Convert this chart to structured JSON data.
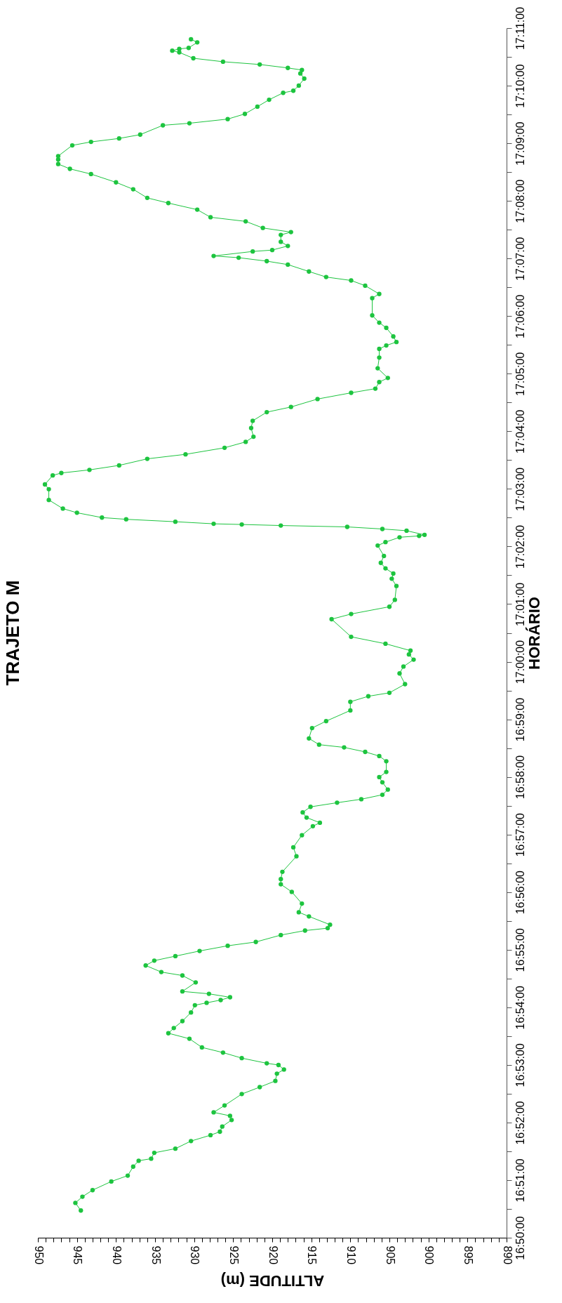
{
  "chart_data": {
    "type": "line",
    "title": "TRAJETO M",
    "xlabel": "ALTITUDE (m)",
    "ylabel": "HORÁRIO",
    "marker": "circle",
    "line_style": "solid",
    "x": [
      944.5,
      945.2,
      944.3,
      943.0,
      940.6,
      938.5,
      937.8,
      937.1,
      935.5,
      935.1,
      932.4,
      930.4,
      927.9,
      926.7,
      926.4,
      925.2,
      925.4,
      927.5,
      926.1,
      923.9,
      921.6,
      919.6,
      919.4,
      918.5,
      919.2,
      920.7,
      923.9,
      926.3,
      929.0,
      930.6,
      933.3,
      932.6,
      931.5,
      930.4,
      929.9,
      928.4,
      926.6,
      925.4,
      928.1,
      931.5,
      929.8,
      931.5,
      934.2,
      936.2,
      935.1,
      932.4,
      929.3,
      925.7,
      922.1,
      918.9,
      915.8,
      912.9,
      912.6,
      915.3,
      916.6,
      916.2,
      917.5,
      918.9,
      918.9,
      918.7,
      916.9,
      917.3,
      916.2,
      914.8,
      913.9,
      915.6,
      916.1,
      915.1,
      911.7,
      908.6,
      905.9,
      905.2,
      905.9,
      906.3,
      905.4,
      905.4,
      906.3,
      908.1,
      910.8,
      914.0,
      915.3,
      914.9,
      913.1,
      910.0,
      910.0,
      907.7,
      905.0,
      903.0,
      903.7,
      903.2,
      901.9,
      902.5,
      902.3,
      905.5,
      909.9,
      912.4,
      909.9,
      905.0,
      904.3,
      904.1,
      904.7,
      904.5,
      905.5,
      906.1,
      905.7,
      906.5,
      905.5,
      903.7,
      901.2,
      900.5,
      902.8,
      905.9,
      910.4,
      918.9,
      923.9,
      927.5,
      932.4,
      938.7,
      941.8,
      945.0,
      946.8,
      948.6,
      948.6,
      949.1,
      948.1,
      947.0,
      943.4,
      939.6,
      936.0,
      931.1,
      926.1,
      923.4,
      922.4,
      922.7,
      922.5,
      920.7,
      917.6,
      914.2,
      909.9,
      906.8,
      906.3,
      905.2,
      906.5,
      906.3,
      906.3,
      905.4,
      904.1,
      904.5,
      905.4,
      906.3,
      907.2,
      907.2,
      906.3,
      908.1,
      909.9,
      913.1,
      915.3,
      918.0,
      920.7,
      924.3,
      927.5,
      922.5,
      920.0,
      918.0,
      918.9,
      918.9,
      917.6,
      921.2,
      923.4,
      927.9,
      929.6,
      933.3,
      936.0,
      937.8,
      940.0,
      943.2,
      945.9,
      947.4,
      947.4,
      947.4,
      945.6,
      943.2,
      939.6,
      936.9,
      934.0,
      930.6,
      925.7,
      923.5,
      921.9,
      920.4,
      918.6,
      917.3,
      916.6,
      915.9,
      916.4,
      916.2,
      918.0,
      921.6,
      926.3,
      930.1,
      931.9,
      932.8,
      931.9,
      930.7,
      929.6,
      930.4
    ],
    "series": [
      {
        "color": "#1dc43f",
        "values": [
          16.8412,
          16.8434,
          16.8452,
          16.8471,
          16.8496,
          16.8513,
          16.8539,
          16.8556,
          16.8562,
          16.8579,
          16.8591,
          16.8613,
          16.863,
          16.864,
          16.8655,
          16.8674,
          16.8686,
          16.8696,
          16.8716,
          16.8749,
          16.8769,
          16.8787,
          16.8808,
          16.882,
          16.8833,
          16.8838,
          16.8853,
          16.8869,
          16.8884,
          16.8909,
          16.8925,
          16.894,
          16.896,
          16.8985,
          16.9006,
          16.9013,
          16.9021,
          16.9029,
          16.9039,
          16.9046,
          16.9072,
          16.9092,
          16.9102,
          16.9121,
          16.9135,
          16.9148,
          16.9163,
          16.9178,
          16.9189,
          16.9209,
          16.9222,
          16.9229,
          16.9239,
          16.9263,
          16.9275,
          16.93,
          16.9334,
          16.9356,
          16.9371,
          16.9392,
          16.9437,
          16.9463,
          16.9498,
          16.9524,
          16.9534,
          16.9549,
          16.9564,
          16.958,
          16.9592,
          16.9602,
          16.9615,
          16.963,
          16.9651,
          16.9666,
          16.9681,
          16.9712,
          16.9727,
          16.9739,
          16.9752,
          16.976,
          16.9778,
          16.9808,
          16.9828,
          16.9859,
          16.9884,
          16.99,
          16.991,
          16.9935,
          16.9966,
          16.9986,
          17.0006,
          17.0021,
          17.0032,
          17.0052,
          17.0072,
          17.0123,
          17.0138,
          17.0159,
          17.0179,
          17.0219,
          17.024,
          17.0255,
          17.027,
          17.0286,
          17.0306,
          17.0336,
          17.0346,
          17.036,
          17.0364,
          17.0367,
          17.0379,
          17.0384,
          17.039,
          17.0394,
          17.0397,
          17.0399,
          17.0405,
          17.0412,
          17.0417,
          17.0431,
          17.0443,
          17.0468,
          17.0499,
          17.0513,
          17.0539,
          17.0546,
          17.0555,
          17.0568,
          17.0587,
          17.06,
          17.0619,
          17.0636,
          17.0651,
          17.0676,
          17.0697,
          17.0722,
          17.0737,
          17.076,
          17.0778,
          17.079,
          17.0809,
          17.0821,
          17.0849,
          17.088,
          17.0905,
          17.0915,
          17.0925,
          17.0941,
          17.0966,
          17.0981,
          17.1002,
          17.1052,
          17.1064,
          17.1088,
          17.1103,
          17.1113,
          17.1129,
          17.1149,
          17.1159,
          17.1169,
          17.1174,
          17.1187,
          17.1191,
          17.1203,
          17.1215,
          17.1235,
          17.1243,
          17.1255,
          17.1274,
          17.1286,
          17.1308,
          17.1327,
          17.1342,
          17.1367,
          17.1387,
          17.1411,
          17.1426,
          17.144,
          17.1453,
          17.1463,
          17.1494,
          17.1504,
          17.1514,
          17.1525,
          17.1552,
          17.1558,
          17.157,
          17.1585,
          17.1606,
          17.1626,
          17.1646,
          17.1652,
          17.1667,
          17.1687,
          17.1702,
          17.1712,
          17.1718,
          17.1728,
          17.1736,
          17.1746,
          17.1763,
          17.1768,
          17.1773,
          17.1776,
          17.1792,
          17.1801
        ]
      }
    ],
    "ylim": [
      16.833333,
      17.183333
    ],
    "yticks": [
      {
        "value": 16.833333,
        "label": "16:50:00"
      },
      {
        "value": 16.841667,
        "label": null
      },
      {
        "value": 16.85,
        "label": "16:51:00"
      },
      {
        "value": 16.858333,
        "label": null
      },
      {
        "value": 16.866667,
        "label": "16:52:00"
      },
      {
        "value": 16.875,
        "label": null
      },
      {
        "value": 16.883333,
        "label": "16:53:00"
      },
      {
        "value": 16.891667,
        "label": null
      },
      {
        "value": 16.9,
        "label": "16:54:00"
      },
      {
        "value": 16.908333,
        "label": null
      },
      {
        "value": 16.916667,
        "label": "16:55:00"
      },
      {
        "value": 16.925,
        "label": null
      },
      {
        "value": 16.933333,
        "label": "16:56:00"
      },
      {
        "value": 16.941667,
        "label": null
      },
      {
        "value": 16.95,
        "label": "16:57:00"
      },
      {
        "value": 16.958333,
        "label": null
      },
      {
        "value": 16.966667,
        "label": "16:58:00"
      },
      {
        "value": 16.975,
        "label": null
      },
      {
        "value": 16.983333,
        "label": "16:59:00"
      },
      {
        "value": 16.991667,
        "label": null
      },
      {
        "value": 17,
        "label": "17:00:00"
      },
      {
        "value": 17.008333,
        "label": null
      },
      {
        "value": 17.016667,
        "label": "17:01:00"
      },
      {
        "value": 17.025,
        "label": null
      },
      {
        "value": 17.033333,
        "label": "17:02:00"
      },
      {
        "value": 17.041667,
        "label": null
      },
      {
        "value": 17.05,
        "label": "17:03:00"
      },
      {
        "value": 17.058333,
        "label": null
      },
      {
        "value": 17.066667,
        "label": "17:04:00"
      },
      {
        "value": 17.075,
        "label": null
      },
      {
        "value": 17.083333,
        "label": "17:05:00"
      },
      {
        "value": 17.091667,
        "label": null
      },
      {
        "value": 17.1,
        "label": "17:06:00"
      },
      {
        "value": 17.108333,
        "label": null
      },
      {
        "value": 17.116667,
        "label": "17:07:00"
      },
      {
        "value": 17.125,
        "label": null
      },
      {
        "value": 17.133333,
        "label": "17:08:00"
      },
      {
        "value": 17.141667,
        "label": null
      },
      {
        "value": 17.15,
        "label": "17:09:00"
      },
      {
        "value": 17.158333,
        "label": null
      },
      {
        "value": 17.166667,
        "label": "17:10:00"
      },
      {
        "value": 17.175,
        "label": null
      },
      {
        "value": 17.183333,
        "label": "17:11:00"
      }
    ],
    "xlim": [
      950,
      890
    ],
    "xticks": [
      950,
      {
        "value": 949,
        "label": null
      },
      {
        "value": 948,
        "label": null
      },
      {
        "value": 947,
        "label": null
      },
      {
        "value": 946,
        "label": null
      },
      945,
      {
        "value": 944,
        "label": null
      },
      {
        "value": 943,
        "label": null
      },
      {
        "value": 942,
        "label": null
      },
      {
        "value": 941,
        "label": null
      },
      940,
      {
        "value": 939,
        "label": null
      },
      {
        "value": 938,
        "label": null
      },
      {
        "value": 937,
        "label": null
      },
      {
        "value": 936,
        "label": null
      },
      935,
      {
        "value": 934,
        "label": null
      },
      {
        "value": 933,
        "label": null
      },
      {
        "value": 932,
        "label": null
      },
      {
        "value": 931,
        "label": null
      },
      930,
      {
        "value": 929,
        "label": null
      },
      {
        "value": 928,
        "label": null
      },
      {
        "value": 927,
        "label": null
      },
      {
        "value": 926,
        "label": null
      },
      925,
      {
        "value": 924,
        "label": null
      },
      {
        "value": 923,
        "label": null
      },
      {
        "value": 922,
        "label": null
      },
      {
        "value": 921,
        "label": null
      },
      920,
      {
        "value": 919,
        "label": null
      },
      {
        "value": 918,
        "label": null
      },
      {
        "value": 917,
        "label": null
      },
      {
        "value": 916,
        "label": null
      },
      915,
      {
        "value": 914,
        "label": null
      },
      {
        "value": 913,
        "label": null
      },
      {
        "value": 912,
        "label": null
      },
      {
        "value": 911,
        "label": null
      },
      910,
      {
        "value": 909,
        "label": null
      },
      {
        "value": 908,
        "label": null
      },
      {
        "value": 907,
        "label": null
      },
      {
        "value": 906,
        "label": null
      },
      905,
      {
        "value": 904,
        "label": null
      },
      {
        "value": 903,
        "label": null
      },
      {
        "value": 902,
        "label": null
      },
      {
        "value": 901,
        "label": null
      },
      900,
      {
        "value": 899,
        "label": null
      },
      {
        "value": 898,
        "label": null
      },
      {
        "value": 897,
        "label": null
      },
      {
        "value": 896,
        "label": null
      },
      895,
      {
        "value": 894,
        "label": null
      },
      {
        "value": 893,
        "label": null
      },
      {
        "value": 892,
        "label": null
      },
      {
        "value": 891,
        "label": null
      },
      890
    ]
  }
}
